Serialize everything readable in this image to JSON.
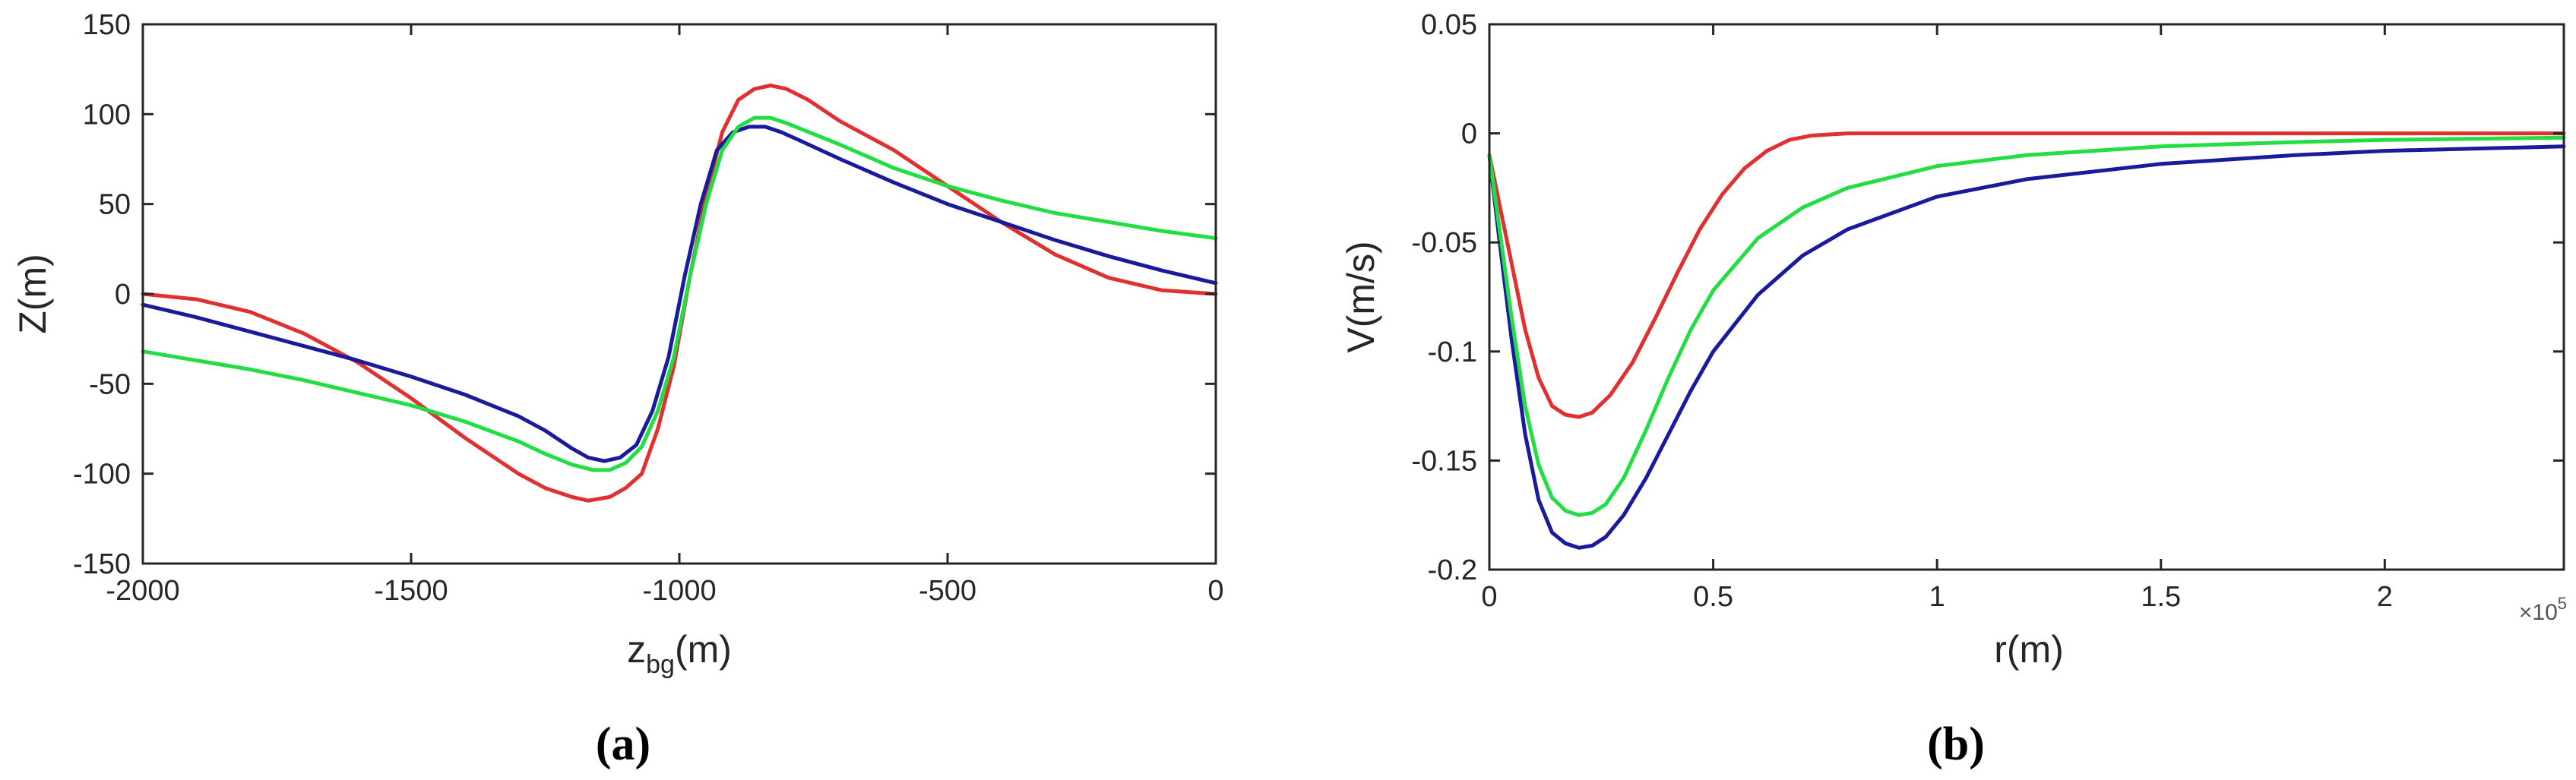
{
  "chart_data": [
    {
      "panel": "(a)",
      "type": "line",
      "xlabel": "z",
      "xlabel_sub": "bg",
      "xlabel_unit": "(m)",
      "ylabel": "Z(m)",
      "xlim": [
        -2000,
        0
      ],
      "ylim": [
        -150,
        150
      ],
      "xticks": [
        -2000,
        -1500,
        -1000,
        -500,
        0
      ],
      "yticks": [
        -150,
        -100,
        -50,
        0,
        50,
        100,
        150
      ],
      "xtick_labels": [
        "-2000",
        "-1500",
        "-1000",
        "-500",
        "0"
      ],
      "ytick_labels": [
        "-150",
        "-100",
        "-50",
        "0",
        "50",
        "100",
        "150"
      ],
      "series": [
        {
          "name": "red",
          "color": "#e03030",
          "x": [
            -2000,
            -1900,
            -1800,
            -1700,
            -1600,
            -1500,
            -1400,
            -1300,
            -1250,
            -1200,
            -1170,
            -1130,
            -1100,
            -1070,
            -1040,
            -1010,
            -980,
            -950,
            -920,
            -890,
            -860,
            -830,
            -800,
            -760,
            -700,
            -600,
            -500,
            -400,
            -300,
            -200,
            -100,
            0
          ],
          "y": [
            0,
            -3,
            -10,
            -22,
            -38,
            -58,
            -80,
            -100,
            -108,
            -113,
            -115,
            -113,
            -108,
            -100,
            -75,
            -40,
            10,
            55,
            90,
            108,
            114,
            116,
            114,
            108,
            96,
            80,
            60,
            40,
            22,
            9,
            2,
            0
          ]
        },
        {
          "name": "green",
          "color": "#22dd44",
          "x": [
            -2000,
            -1900,
            -1800,
            -1700,
            -1600,
            -1500,
            -1400,
            -1300,
            -1250,
            -1200,
            -1160,
            -1130,
            -1100,
            -1070,
            -1040,
            -1010,
            -980,
            -950,
            -920,
            -890,
            -860,
            -830,
            -800,
            -700,
            -600,
            -500,
            -400,
            -300,
            -200,
            -100,
            0
          ],
          "y": [
            -32,
            -37,
            -42,
            -48,
            -55,
            -62,
            -71,
            -82,
            -89,
            -95,
            -98,
            -98,
            -94,
            -85,
            -65,
            -35,
            10,
            50,
            80,
            93,
            98,
            98,
            95,
            83,
            70,
            60,
            52,
            45,
            40,
            35,
            31
          ]
        },
        {
          "name": "blue",
          "color": "#1a1a9c",
          "x": [
            -2000,
            -1900,
            -1800,
            -1700,
            -1600,
            -1500,
            -1400,
            -1300,
            -1250,
            -1200,
            -1170,
            -1140,
            -1110,
            -1080,
            -1050,
            -1020,
            -990,
            -960,
            -930,
            -900,
            -870,
            -840,
            -810,
            -780,
            -700,
            -600,
            -500,
            -400,
            -300,
            -200,
            -100,
            0
          ],
          "y": [
            -6,
            -13,
            -21,
            -29,
            -37,
            -46,
            -56,
            -68,
            -76,
            -86,
            -91,
            -93,
            -91,
            -84,
            -65,
            -35,
            10,
            50,
            80,
            90,
            93,
            93,
            90,
            86,
            75,
            62,
            50,
            40,
            30,
            21,
            13,
            6
          ]
        }
      ]
    },
    {
      "panel": "(b)",
      "type": "line",
      "xlabel": "r(m)",
      "ylabel": "V(m/s)",
      "x_multiplier": "×10",
      "x_multiplier_exp": "5",
      "xlim": [
        0,
        2.4
      ],
      "ylim": [
        -0.2,
        0.05
      ],
      "xticks": [
        0,
        0.5,
        1,
        1.5,
        2
      ],
      "yticks": [
        -0.2,
        -0.15,
        -0.1,
        -0.05,
        0,
        0.05
      ],
      "xtick_labels": [
        "0",
        "0.5",
        "1",
        "1.5",
        "2"
      ],
      "ytick_labels": [
        "-0.2",
        "-0.15",
        "-0.1",
        "-0.05",
        "0",
        "0.05"
      ],
      "series": [
        {
          "name": "red",
          "color": "#e03030",
          "x": [
            0,
            0.02,
            0.05,
            0.08,
            0.11,
            0.14,
            0.17,
            0.2,
            0.23,
            0.27,
            0.32,
            0.37,
            0.42,
            0.47,
            0.52,
            0.57,
            0.62,
            0.67,
            0.72,
            0.8,
            1.0,
            1.5,
            2.0,
            2.4
          ],
          "y": [
            -0.01,
            -0.03,
            -0.06,
            -0.09,
            -0.112,
            -0.125,
            -0.129,
            -0.13,
            -0.128,
            -0.12,
            -0.105,
            -0.085,
            -0.064,
            -0.044,
            -0.028,
            -0.016,
            -0.008,
            -0.003,
            -0.001,
            0,
            0,
            0,
            0,
            0
          ]
        },
        {
          "name": "green",
          "color": "#22dd44",
          "x": [
            0,
            0.02,
            0.05,
            0.08,
            0.11,
            0.14,
            0.17,
            0.2,
            0.23,
            0.26,
            0.3,
            0.35,
            0.4,
            0.45,
            0.5,
            0.6,
            0.7,
            0.8,
            1.0,
            1.2,
            1.5,
            1.8,
            2.0,
            2.4
          ],
          "y": [
            -0.01,
            -0.04,
            -0.085,
            -0.125,
            -0.152,
            -0.167,
            -0.173,
            -0.175,
            -0.174,
            -0.17,
            -0.158,
            -0.136,
            -0.112,
            -0.09,
            -0.072,
            -0.048,
            -0.034,
            -0.025,
            -0.015,
            -0.01,
            -0.006,
            -0.004,
            -0.003,
            -0.002
          ]
        },
        {
          "name": "blue",
          "color": "#1a1a9c",
          "x": [
            0,
            0.02,
            0.05,
            0.08,
            0.11,
            0.14,
            0.17,
            0.2,
            0.23,
            0.26,
            0.3,
            0.35,
            0.4,
            0.45,
            0.5,
            0.6,
            0.7,
            0.8,
            1.0,
            1.2,
            1.5,
            1.8,
            2.0,
            2.4
          ],
          "y": [
            -0.01,
            -0.045,
            -0.095,
            -0.138,
            -0.168,
            -0.183,
            -0.188,
            -0.19,
            -0.189,
            -0.185,
            -0.175,
            -0.158,
            -0.138,
            -0.118,
            -0.1,
            -0.074,
            -0.056,
            -0.044,
            -0.029,
            -0.021,
            -0.014,
            -0.01,
            -0.008,
            -0.006
          ]
        }
      ]
    }
  ]
}
